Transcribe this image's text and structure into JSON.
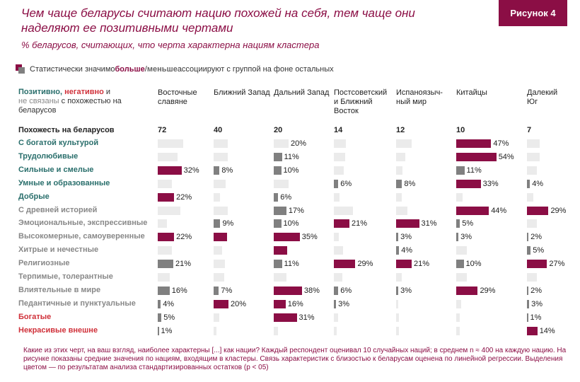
{
  "title": "Чем чаще беларусы считают нацию похожей на себя, тем чаще они наделяют ее позитивными чертами",
  "badge": "Рисунок 4",
  "subtitle": "% беларусов, считающих, что черта характерна нациям кластера",
  "legend": {
    "prefix": "Статистически значимо ",
    "more": "больше",
    "slash": "/",
    "less": "меньше",
    "suffix": " ассоциируют с группой на фоне остальных"
  },
  "header_left": {
    "pos": "Позитивно,",
    "neg": "негативно",
    "and": " и",
    "neu": "не связаны",
    "rest": " с похожестью на беларусов"
  },
  "similarity_label": "Похожесть на беларусов",
  "colors": {
    "more": "#8b0e45",
    "less": "#808080",
    "neutral": "#ebebeb",
    "positive": "#2a6f6c",
    "negative": "#d0313a",
    "unrelated": "#888888"
  },
  "chart_data": {
    "type": "bar",
    "clusters": [
      {
        "name": "Восточные славяне",
        "similarity": 72
      },
      {
        "name": "Ближний Запад",
        "similarity": 40
      },
      {
        "name": "Дальний Запад",
        "similarity": 20
      },
      {
        "name": "Постсоветский и Ближний Восток",
        "similarity": 14
      },
      {
        "name": "Испаноязыч-ный мир",
        "similarity": 12
      },
      {
        "name": "Китайцы",
        "similarity": 10
      },
      {
        "name": "Далекий Юг",
        "similarity": 7
      }
    ],
    "traits": [
      {
        "name": "С богатой культурой",
        "group": "pos",
        "cells": [
          {
            "v": 34,
            "s": "n"
          },
          {
            "v": 19,
            "s": "n"
          },
          {
            "v": 20,
            "s": "n",
            "label": "20%"
          },
          {
            "v": 16,
            "s": "n"
          },
          {
            "v": 21,
            "s": "n"
          },
          {
            "v": 47,
            "s": "m",
            "label": "47%"
          },
          {
            "v": 17,
            "s": "n"
          }
        ]
      },
      {
        "name": "Трудолюбивые",
        "group": "pos",
        "cells": [
          {
            "v": 27,
            "s": "n"
          },
          {
            "v": 19,
            "s": "n"
          },
          {
            "v": 11,
            "s": "l",
            "label": "11%"
          },
          {
            "v": 15,
            "s": "n"
          },
          {
            "v": 12,
            "s": "n"
          },
          {
            "v": 54,
            "s": "m",
            "label": "54%"
          },
          {
            "v": 17,
            "s": "n"
          }
        ]
      },
      {
        "name": "Сильные и смелые",
        "group": "pos",
        "cells": [
          {
            "v": 32,
            "s": "m",
            "label": "32%"
          },
          {
            "v": 8,
            "s": "l",
            "label": "8%"
          },
          {
            "v": 10,
            "s": "l",
            "label": "10%"
          },
          {
            "v": 13,
            "s": "n"
          },
          {
            "v": 9,
            "s": "n"
          },
          {
            "v": 11,
            "s": "l",
            "label": "11%"
          },
          {
            "v": 13,
            "s": "n"
          }
        ]
      },
      {
        "name": "Умные и образованные",
        "group": "pos",
        "cells": [
          {
            "v": 19,
            "s": "n"
          },
          {
            "v": 16,
            "s": "n"
          },
          {
            "v": 20,
            "s": "n"
          },
          {
            "v": 6,
            "s": "l",
            "label": "6%"
          },
          {
            "v": 8,
            "s": "l",
            "label": "8%"
          },
          {
            "v": 33,
            "s": "m",
            "label": "33%"
          },
          {
            "v": 4,
            "s": "l",
            "label": "4%"
          }
        ]
      },
      {
        "name": "Добрые",
        "group": "pos",
        "cells": [
          {
            "v": 22,
            "s": "m",
            "label": "22%"
          },
          {
            "v": 9,
            "s": "n"
          },
          {
            "v": 6,
            "s": "l",
            "label": "6%"
          },
          {
            "v": 8,
            "s": "n"
          },
          {
            "v": 8,
            "s": "n"
          },
          {
            "v": 9,
            "s": "n"
          },
          {
            "v": 9,
            "s": "n"
          }
        ]
      },
      {
        "name": "С древней историей",
        "group": "neu",
        "cells": [
          {
            "v": 30,
            "s": "n"
          },
          {
            "v": 19,
            "s": "n"
          },
          {
            "v": 17,
            "s": "l",
            "label": "17%"
          },
          {
            "v": 26,
            "s": "n"
          },
          {
            "v": 15,
            "s": "n"
          },
          {
            "v": 44,
            "s": "m",
            "label": "44%"
          },
          {
            "v": 29,
            "s": "m",
            "label": "29%"
          }
        ]
      },
      {
        "name": "Эмоциональные, экспрессивные",
        "group": "neu",
        "cells": [
          {
            "v": 12,
            "s": "n"
          },
          {
            "v": 9,
            "s": "l",
            "label": "9%"
          },
          {
            "v": 10,
            "s": "l",
            "label": "10%"
          },
          {
            "v": 21,
            "s": "m",
            "label": "21%"
          },
          {
            "v": 31,
            "s": "m",
            "label": "31%"
          },
          {
            "v": 5,
            "s": "l",
            "label": "5%"
          },
          {
            "v": 13,
            "s": "n"
          }
        ]
      },
      {
        "name": "Высокомерные, самоуверенные",
        "group": "neu",
        "cells": [
          {
            "v": 22,
            "s": "m",
            "label": "22%"
          },
          {
            "v": 18,
            "s": "m"
          },
          {
            "v": 35,
            "s": "m",
            "label": "35%"
          },
          {
            "v": 7,
            "s": "n"
          },
          {
            "v": 3,
            "s": "l",
            "label": "3%"
          },
          {
            "v": 3,
            "s": "l",
            "label": "3%"
          },
          {
            "v": 2,
            "s": "l",
            "label": "2%"
          }
        ]
      },
      {
        "name": "Хитрые и нечестные",
        "group": "neu",
        "cells": [
          {
            "v": 19,
            "s": "n"
          },
          {
            "v": 11,
            "s": "n"
          },
          {
            "v": 18,
            "s": "m"
          },
          {
            "v": 12,
            "s": "n"
          },
          {
            "v": 4,
            "s": "l",
            "label": "4%"
          },
          {
            "v": 14,
            "s": "n"
          },
          {
            "v": 5,
            "s": "l",
            "label": "5%"
          }
        ]
      },
      {
        "name": "Религиозные",
        "group": "neu",
        "cells": [
          {
            "v": 21,
            "s": "l",
            "label": "21%"
          },
          {
            "v": 15,
            "s": "n"
          },
          {
            "v": 11,
            "s": "l",
            "label": "11%"
          },
          {
            "v": 29,
            "s": "m",
            "label": "29%"
          },
          {
            "v": 21,
            "s": "m",
            "label": "21%"
          },
          {
            "v": 10,
            "s": "l",
            "label": "10%"
          },
          {
            "v": 27,
            "s": "m",
            "label": "27%"
          }
        ]
      },
      {
        "name": "Терпимые, толерантные",
        "group": "neu",
        "cells": [
          {
            "v": 16,
            "s": "n"
          },
          {
            "v": 14,
            "s": "n"
          },
          {
            "v": 17,
            "s": "n"
          },
          {
            "v": 11,
            "s": "n"
          },
          {
            "v": 8,
            "s": "n"
          },
          {
            "v": 14,
            "s": "n"
          },
          {
            "v": 13,
            "s": "n"
          }
        ]
      },
      {
        "name": "Влиятельные в мире",
        "group": "neu",
        "cells": [
          {
            "v": 16,
            "s": "l",
            "label": "16%"
          },
          {
            "v": 7,
            "s": "l",
            "label": "7%"
          },
          {
            "v": 38,
            "s": "m",
            "label": "38%"
          },
          {
            "v": 6,
            "s": "l",
            "label": "6%"
          },
          {
            "v": 3,
            "s": "l",
            "label": "3%"
          },
          {
            "v": 29,
            "s": "m",
            "label": "29%"
          },
          {
            "v": 2,
            "s": "l",
            "label": "2%"
          }
        ]
      },
      {
        "name": "Педантичные и пунктуальные",
        "group": "neu",
        "cells": [
          {
            "v": 4,
            "s": "l",
            "label": "4%"
          },
          {
            "v": 20,
            "s": "m",
            "label": "20%"
          },
          {
            "v": 16,
            "s": "m",
            "label": "16%"
          },
          {
            "v": 3,
            "s": "l",
            "label": "3%"
          },
          {
            "v": 3,
            "s": "n"
          },
          {
            "v": 7,
            "s": "n"
          },
          {
            "v": 3,
            "s": "l",
            "label": "3%"
          }
        ]
      },
      {
        "name": "Богатые",
        "group": "neg",
        "cells": [
          {
            "v": 5,
            "s": "l",
            "label": "5%"
          },
          {
            "v": 8,
            "s": "n"
          },
          {
            "v": 31,
            "s": "m",
            "label": "31%"
          },
          {
            "v": 6,
            "s": "n"
          },
          {
            "v": 4,
            "s": "n"
          },
          {
            "v": 5,
            "s": "n"
          },
          {
            "v": 1,
            "s": "l",
            "label": "1%"
          }
        ]
      },
      {
        "name": "Некрасивые внешне",
        "group": "neg",
        "cells": [
          {
            "v": 1,
            "s": "l",
            "label": "1%"
          },
          {
            "v": 4,
            "s": "n"
          },
          {
            "v": 6,
            "s": "n"
          },
          {
            "v": 4,
            "s": "n"
          },
          {
            "v": 4,
            "s": "n"
          },
          {
            "v": 5,
            "s": "n"
          },
          {
            "v": 14,
            "s": "m",
            "label": "14%"
          }
        ]
      }
    ]
  },
  "footnote": "Какие из этих черт, на ваш взгляд, наиболее характерны [...] как нации? Каждый респондент оценивал 10 случайных наций; в среднем n ≈ 400 на каждую нацию. На рисунке показаны средние значения по нациям, входящим в кластеры. Связь характеристик с близостью к беларусам оценена по линейной регрессии. Выделения цветом — по результатам анализа стандартизированных остатков (p < 05)"
}
